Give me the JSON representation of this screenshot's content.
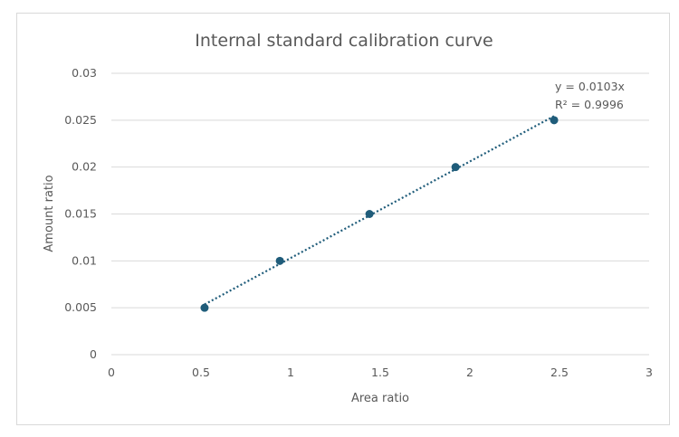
{
  "chart_data": {
    "type": "scatter",
    "title": "Internal standard calibration curve",
    "xlabel": "Area ratio",
    "ylabel": "Amount ratio",
    "xlim": [
      0,
      3
    ],
    "ylim": [
      0,
      0.03
    ],
    "xticks": [
      "0",
      "0.5",
      "1",
      "1.5",
      "2",
      "2.5",
      "3"
    ],
    "yticks": [
      "0",
      "0.005",
      "0.01",
      "0.015",
      "0.02",
      "0.025",
      "0.03"
    ],
    "grid": "horizontal",
    "points": [
      {
        "x": 0.52,
        "y": 0.005
      },
      {
        "x": 0.94,
        "y": 0.01
      },
      {
        "x": 1.44,
        "y": 0.015
      },
      {
        "x": 1.92,
        "y": 0.02
      },
      {
        "x": 2.47,
        "y": 0.025
      }
    ],
    "trendline": {
      "type": "linear",
      "slope": 0.0103,
      "style": "dotted",
      "equation_label": "y = 0.0103x",
      "r2_label": "R² = 0.9996"
    },
    "colors": {
      "marker": "#1f5c7a",
      "trendline": "#1f5c7a",
      "grid": "#d9d9d9",
      "text": "#595959"
    }
  }
}
